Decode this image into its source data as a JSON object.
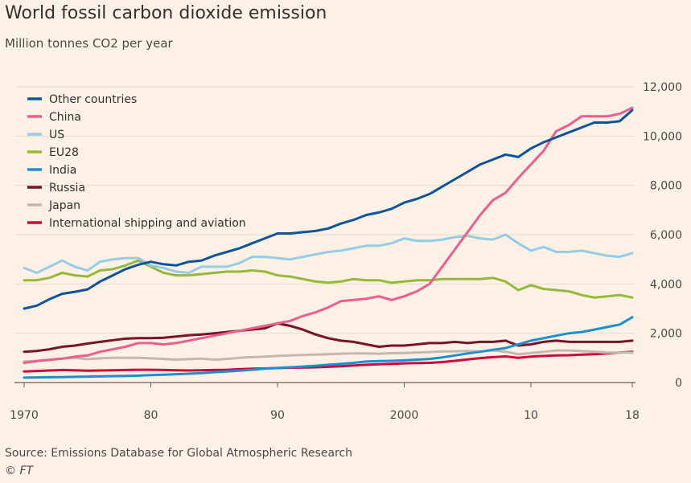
{
  "chart_data": {
    "type": "line",
    "title": "World fossil carbon dioxide emission",
    "subtitle": "Million tonnes CO2 per year",
    "source": "Source: Emissions Database for Global Atmospheric Research",
    "credit": "© FT",
    "xlabel": "",
    "ylabel": "",
    "xlim": [
      1970,
      2018
    ],
    "ylim": [
      0,
      12000
    ],
    "x_ticks": [
      1970,
      1980,
      1990,
      2000,
      2010,
      2018
    ],
    "x_tick_labels": [
      "1970",
      "80",
      "90",
      "2000",
      "10",
      "18"
    ],
    "y_ticks": [
      0,
      2000,
      4000,
      6000,
      8000,
      10000,
      12000
    ],
    "y_tick_labels": [
      "0",
      "2,000",
      "4,000",
      "6,000",
      "8,000",
      "10,000",
      "12,000"
    ],
    "grid": true,
    "legend_position": "top-left",
    "x": [
      1970,
      1971,
      1972,
      1973,
      1974,
      1975,
      1976,
      1977,
      1978,
      1979,
      1980,
      1981,
      1982,
      1983,
      1984,
      1985,
      1986,
      1987,
      1988,
      1989,
      1990,
      1991,
      1992,
      1993,
      1994,
      1995,
      1996,
      1997,
      1998,
      1999,
      2000,
      2001,
      2002,
      2003,
      2004,
      2005,
      2006,
      2007,
      2008,
      2009,
      2010,
      2011,
      2012,
      2013,
      2014,
      2015,
      2016,
      2017,
      2018
    ],
    "series": [
      {
        "name": "Other countries",
        "color": "#0f5499",
        "values": [
          3000,
          3120,
          3380,
          3600,
          3680,
          3780,
          4100,
          4350,
          4600,
          4780,
          4900,
          4800,
          4750,
          4900,
          4950,
          5150,
          5300,
          5450,
          5650,
          5850,
          6050,
          6050,
          6100,
          6150,
          6250,
          6450,
          6600,
          6800,
          6900,
          7050,
          7300,
          7450,
          7650,
          7950,
          8250,
          8550,
          8850,
          9050,
          9250,
          9150,
          9500,
          9750,
          9950,
          10150,
          10350,
          10550,
          10550,
          10600,
          11050
        ]
      },
      {
        "name": "China",
        "color": "#eb5e8d",
        "values": [
          800,
          870,
          920,
          970,
          1050,
          1100,
          1250,
          1350,
          1450,
          1600,
          1600,
          1550,
          1600,
          1700,
          1800,
          1900,
          2000,
          2100,
          2200,
          2300,
          2400,
          2500,
          2700,
          2850,
          3050,
          3300,
          3350,
          3400,
          3500,
          3350,
          3500,
          3700,
          4000,
          4700,
          5400,
          6100,
          6800,
          7400,
          7700,
          8300,
          8850,
          9400,
          10200,
          10450,
          10800,
          10800,
          10800,
          10900,
          11150
        ]
      },
      {
        "name": "US",
        "color": "#96cce4",
        "values": [
          4650,
          4450,
          4700,
          4950,
          4700,
          4550,
          4900,
          5000,
          5050,
          5050,
          4750,
          4650,
          4500,
          4450,
          4700,
          4700,
          4700,
          4850,
          5100,
          5100,
          5050,
          5000,
          5100,
          5200,
          5300,
          5350,
          5450,
          5550,
          5550,
          5650,
          5850,
          5750,
          5750,
          5800,
          5900,
          5950,
          5850,
          5800,
          6000,
          5650,
          5350,
          5500,
          5300,
          5300,
          5350,
          5250,
          5150,
          5100,
          5250
        ]
      },
      {
        "name": "EU28",
        "color": "#96b83b",
        "values": [
          4150,
          4150,
          4250,
          4450,
          4350,
          4300,
          4550,
          4600,
          4750,
          4950,
          4700,
          4450,
          4350,
          4350,
          4400,
          4450,
          4500,
          4500,
          4550,
          4500,
          4350,
          4300,
          4200,
          4100,
          4050,
          4100,
          4200,
          4150,
          4150,
          4050,
          4100,
          4150,
          4150,
          4200,
          4200,
          4200,
          4200,
          4250,
          4100,
          3750,
          3950,
          3800,
          3750,
          3700,
          3550,
          3450,
          3500,
          3550,
          3450
        ]
      },
      {
        "name": "India",
        "color": "#1e8fce",
        "values": [
          200,
          210,
          215,
          220,
          230,
          240,
          250,
          260,
          270,
          280,
          300,
          320,
          340,
          360,
          380,
          420,
          450,
          480,
          520,
          560,
          590,
          620,
          650,
          680,
          720,
          760,
          800,
          850,
          870,
          880,
          900,
          930,
          960,
          1020,
          1100,
          1180,
          1250,
          1330,
          1400,
          1550,
          1700,
          1800,
          1900,
          2000,
          2050,
          2150,
          2250,
          2350,
          2650
        ]
      },
      {
        "name": "Russia",
        "color": "#7a1326",
        "values": [
          1250,
          1280,
          1350,
          1450,
          1500,
          1580,
          1650,
          1720,
          1780,
          1800,
          1800,
          1820,
          1870,
          1920,
          1950,
          2000,
          2050,
          2100,
          2150,
          2200,
          2400,
          2300,
          2150,
          1950,
          1800,
          1700,
          1650,
          1550,
          1450,
          1500,
          1500,
          1550,
          1600,
          1600,
          1650,
          1600,
          1650,
          1650,
          1700,
          1500,
          1550,
          1650,
          1700,
          1650,
          1650,
          1650,
          1650,
          1650,
          1700
        ]
      },
      {
        "name": "Japan",
        "color": "#c2b8b0",
        "values": [
          850,
          880,
          930,
          970,
          1000,
          950,
          980,
          1000,
          1000,
          1000,
          980,
          960,
          930,
          950,
          970,
          930,
          960,
          1000,
          1030,
          1050,
          1080,
          1100,
          1120,
          1130,
          1150,
          1170,
          1180,
          1180,
          1170,
          1190,
          1200,
          1220,
          1240,
          1260,
          1270,
          1280,
          1260,
          1300,
          1250,
          1150,
          1200,
          1250,
          1300,
          1300,
          1280,
          1250,
          1220,
          1220,
          1210
        ]
      },
      {
        "name": "International shipping and aviation",
        "color": "#cc0a38",
        "values": [
          450,
          470,
          490,
          510,
          500,
          480,
          490,
          500,
          510,
          520,
          520,
          510,
          500,
          490,
          500,
          510,
          520,
          540,
          560,
          570,
          590,
          600,
          610,
          620,
          640,
          660,
          690,
          720,
          740,
          760,
          780,
          790,
          800,
          830,
          880,
          940,
          990,
          1030,
          1060,
          1000,
          1050,
          1080,
          1100,
          1110,
          1130,
          1150,
          1180,
          1220,
          1250
        ]
      }
    ]
  }
}
